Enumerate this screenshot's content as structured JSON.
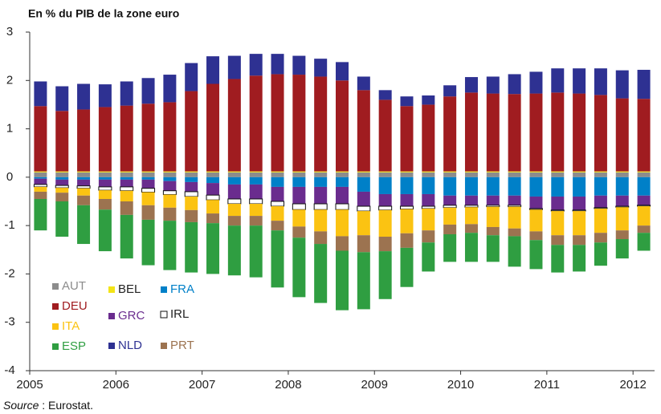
{
  "chart_data": {
    "type": "bar",
    "stacked": true,
    "title": "En % du PIB de la zone euro",
    "source_label": "Source",
    "source_text": " : Eurostat.",
    "categories": [
      "2005",
      null,
      null,
      null,
      "2006",
      null,
      null,
      null,
      "2007",
      null,
      null,
      null,
      "2008",
      null,
      null,
      null,
      "2009",
      null,
      null,
      null,
      "2010",
      null,
      null,
      null,
      "2011",
      null,
      null,
      null,
      "2012"
    ],
    "ylim": [
      -4,
      3
    ],
    "yticks": [
      -4,
      -3,
      -2,
      -1,
      0,
      1,
      2,
      3
    ],
    "grid": false,
    "series": [
      {
        "name": "AUT",
        "color": "#8c8c8c",
        "legend_text_color": "#8c8c8c",
        "values": [
          0.1,
          0.1,
          0.1,
          0.1,
          0.1,
          0.1,
          0.1,
          0.1,
          0.1,
          0.1,
          0.1,
          0.1,
          0.1,
          0.1,
          0.1,
          0.1,
          0.1,
          0.1,
          0.1,
          0.1,
          0.1,
          0.1,
          0.1,
          0.1,
          0.1,
          0.1,
          0.1,
          0.1,
          0.1
        ]
      },
      {
        "name": "BEL",
        "color": "#f3e417",
        "legend_text_color": "#222222",
        "values": [
          0.02,
          0.02,
          0.02,
          0.02,
          0.02,
          0.02,
          0.02,
          0.02,
          0.02,
          0.02,
          0.02,
          0.02,
          0.02,
          0.02,
          0.02,
          0.02,
          0.02,
          0.02,
          0.02,
          0.02,
          0.02,
          0.02,
          0.02,
          0.02,
          0.02,
          0.02,
          0.02,
          0.02,
          0.02
        ]
      },
      {
        "name": "DEU",
        "color": "#a01c20",
        "legend_text_color": "#a01c20",
        "values": [
          1.35,
          1.25,
          1.28,
          1.33,
          1.36,
          1.4,
          1.43,
          1.66,
          1.81,
          1.91,
          1.98,
          2.01,
          2.0,
          1.96,
          1.88,
          1.68,
          1.48,
          1.35,
          1.38,
          1.55,
          1.63,
          1.61,
          1.6,
          1.61,
          1.63,
          1.61,
          1.58,
          1.51,
          1.5
        ]
      },
      {
        "name": "NLD",
        "color": "#2e3192",
        "legend_text_color": "#2e3192",
        "values": [
          0.51,
          0.51,
          0.53,
          0.47,
          0.5,
          0.53,
          0.57,
          0.58,
          0.57,
          0.48,
          0.45,
          0.42,
          0.39,
          0.37,
          0.38,
          0.28,
          0.2,
          0.2,
          0.19,
          0.23,
          0.32,
          0.35,
          0.41,
          0.45,
          0.5,
          0.52,
          0.55,
          0.58,
          0.6
        ]
      },
      {
        "name": "FRA",
        "color": "#0080c8",
        "legend_text_color": "#0080c8",
        "values": [
          -0.03,
          -0.05,
          -0.05,
          -0.05,
          -0.05,
          -0.05,
          -0.08,
          -0.1,
          -0.12,
          -0.15,
          -0.15,
          -0.2,
          -0.2,
          -0.2,
          -0.2,
          -0.3,
          -0.35,
          -0.35,
          -0.35,
          -0.38,
          -0.38,
          -0.38,
          -0.38,
          -0.4,
          -0.4,
          -0.4,
          -0.38,
          -0.38,
          -0.38
        ]
      },
      {
        "name": "GRC",
        "color": "#6a2c8e",
        "legend_text_color": "#6a2c8e",
        "values": [
          -0.12,
          -0.12,
          -0.13,
          -0.15,
          -0.15,
          -0.18,
          -0.2,
          -0.2,
          -0.25,
          -0.3,
          -0.3,
          -0.3,
          -0.35,
          -0.35,
          -0.35,
          -0.3,
          -0.25,
          -0.25,
          -0.25,
          -0.2,
          -0.2,
          -0.2,
          -0.2,
          -0.25,
          -0.28,
          -0.28,
          -0.25,
          -0.22,
          -0.2
        ]
      },
      {
        "name": "IRL",
        "color": "#ffffff",
        "legend_text_color": "#222222",
        "values": [
          -0.05,
          -0.05,
          -0.05,
          -0.07,
          -0.08,
          -0.08,
          -0.08,
          -0.1,
          -0.1,
          -0.1,
          -0.1,
          -0.1,
          -0.12,
          -0.12,
          -0.12,
          -0.1,
          -0.08,
          -0.06,
          -0.05,
          -0.05,
          -0.04,
          -0.03,
          -0.03,
          -0.02,
          -0.02,
          -0.02,
          -0.02,
          -0.02,
          -0.02
        ]
      },
      {
        "name": "ITA",
        "color": "#fbc312",
        "legend_text_color": "#fbc312",
        "values": [
          -0.1,
          -0.1,
          -0.15,
          -0.18,
          -0.22,
          -0.27,
          -0.27,
          -0.28,
          -0.28,
          -0.25,
          -0.25,
          -0.3,
          -0.35,
          -0.45,
          -0.55,
          -0.5,
          -0.55,
          -0.5,
          -0.45,
          -0.35,
          -0.35,
          -0.42,
          -0.45,
          -0.45,
          -0.5,
          -0.5,
          -0.5,
          -0.48,
          -0.4
        ]
      },
      {
        "name": "PRT",
        "color": "#9c7350",
        "legend_text_color": "#9c7350",
        "values": [
          -0.15,
          -0.18,
          -0.2,
          -0.22,
          -0.28,
          -0.3,
          -0.27,
          -0.25,
          -0.2,
          -0.2,
          -0.2,
          -0.2,
          -0.23,
          -0.26,
          -0.3,
          -0.35,
          -0.3,
          -0.3,
          -0.25,
          -0.2,
          -0.18,
          -0.17,
          -0.16,
          -0.18,
          -0.2,
          -0.2,
          -0.2,
          -0.18,
          -0.15
        ]
      },
      {
        "name": "ESP",
        "color": "#2f9e41",
        "legend_text_color": "#2f9e41",
        "values": [
          -0.65,
          -0.73,
          -0.8,
          -0.86,
          -0.9,
          -0.94,
          -1.02,
          -1.04,
          -1.05,
          -1.03,
          -1.07,
          -1.18,
          -1.23,
          -1.22,
          -1.23,
          -1.18,
          -0.99,
          -0.81,
          -0.6,
          -0.57,
          -0.6,
          -0.55,
          -0.63,
          -0.6,
          -0.57,
          -0.55,
          -0.48,
          -0.4,
          -0.37
        ]
      }
    ]
  }
}
